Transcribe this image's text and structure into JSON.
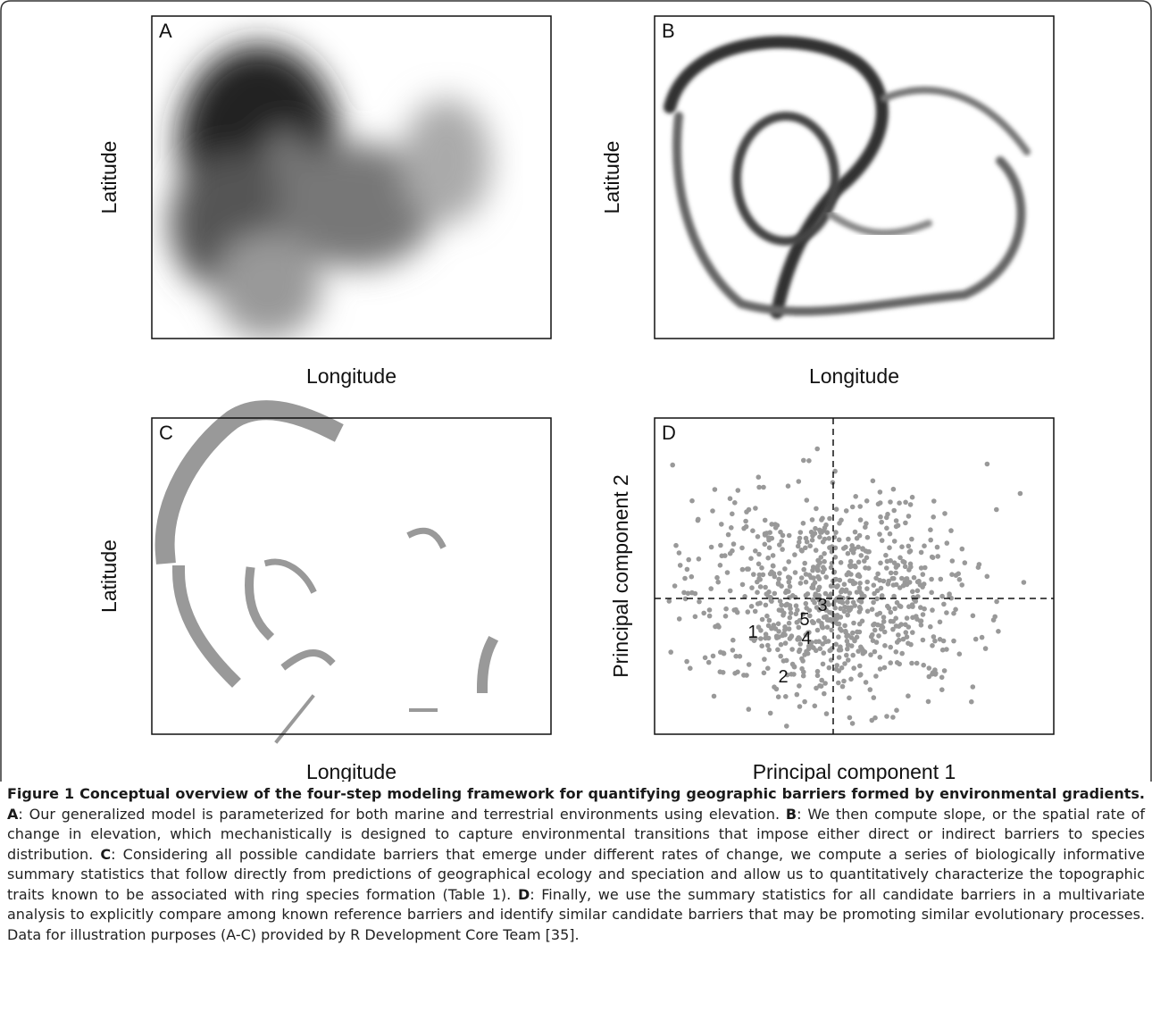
{
  "figure": {
    "panels": [
      {
        "label": "A",
        "x_label": "Longitude",
        "y_label": "Latitude"
      },
      {
        "label": "B",
        "x_label": "Longitude",
        "y_label": "Latitude"
      },
      {
        "label": "C",
        "x_label": "Longitude",
        "y_label": "Latitude"
      },
      {
        "label": "D",
        "x_label": "Principal component 1",
        "y_label": "Principal component 2"
      }
    ],
    "reference_barriers": [
      "1",
      "2",
      "3",
      "4",
      "5"
    ]
  },
  "caption": {
    "title": "Figure 1 Conceptual overview of the four-step modeling framework for quantifying geographic barriers formed by environmental gradients.",
    "parts": [
      {
        "label": "A",
        "text": ": Our generalized model is parameterized for both marine and terrestrial environments using elevation."
      },
      {
        "label": "B",
        "text": ": We then compute slope, or the spatial rate of change in elevation, which mechanistically is designed to capture environmental transitions that impose either direct or indirect barriers to species distribution."
      },
      {
        "label": "C",
        "text": ": Considering all possible candidate barriers that emerge under different rates of change, we compute a series of biologically informative summary statistics that follow directly from predictions of geographical ecology and speciation and allow us to quantitatively characterize the topographic traits known to be associated with ring species formation (Table 1)."
      },
      {
        "label": "D",
        "text": ": Finally, we use the summary statistics for all candidate barriers in a multivariate analysis to explicitly compare among known reference barriers and identify similar candidate barriers that may be promoting similar evolutionary processes."
      }
    ],
    "closing": "Data for illustration purposes (A-C) provided by R Development Core Team [35]."
  }
}
